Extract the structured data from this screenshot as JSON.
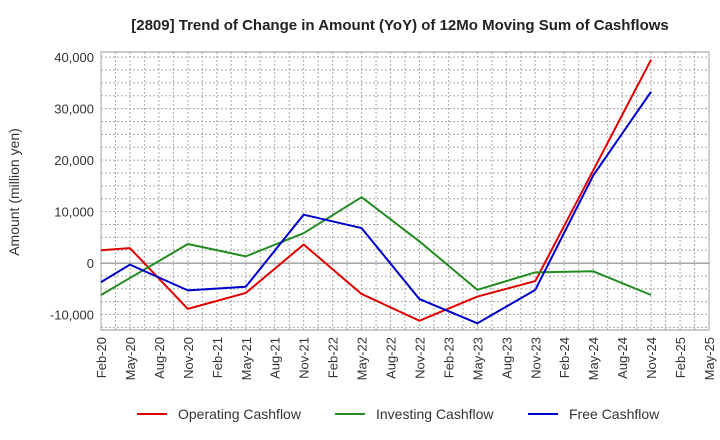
{
  "chart_data": {
    "type": "line",
    "title": "[2809]  Trend of Change in Amount (YoY) of 12Mo Moving Sum of Cashflows",
    "xlabel": "",
    "ylabel": "Amount (million yen)",
    "ylim": [
      -13000,
      41000
    ],
    "yticks": [
      -10000,
      0,
      10000,
      20000,
      30000,
      40000
    ],
    "ytick_labels": [
      "-10,000",
      "0",
      "10,000",
      "20,000",
      "30,000",
      "40,000"
    ],
    "categories": [
      "Feb-20",
      "May-20",
      "Aug-20",
      "Nov-20",
      "Feb-21",
      "May-21",
      "Aug-21",
      "Nov-21",
      "Feb-22",
      "May-22",
      "Aug-22",
      "Nov-22",
      "Feb-23",
      "May-23",
      "Aug-23",
      "Nov-23",
      "Feb-24",
      "May-24",
      "Aug-24",
      "Nov-24",
      "Feb-25",
      "May-25"
    ],
    "series": [
      {
        "name": "Operating Cashflow",
        "color": "#e00000",
        "x": [
          0,
          1,
          3,
          5,
          7,
          9,
          11,
          13,
          15,
          17,
          19
        ],
        "values": [
          2500,
          2900,
          -8900,
          -5800,
          3600,
          -6000,
          -11200,
          -6500,
          -3500,
          18000,
          39500
        ]
      },
      {
        "name": "Investing Cashflow",
        "color": "#228b22",
        "x": [
          0,
          3,
          5,
          7,
          9,
          11,
          13,
          15,
          17,
          19
        ],
        "values": [
          -6200,
          3700,
          1300,
          5800,
          12800,
          4200,
          -5200,
          -1800,
          -1600,
          -6200
        ]
      },
      {
        "name": "Free Cashflow",
        "color": "#0000cc",
        "x": [
          0,
          1,
          3,
          5,
          7,
          9,
          11,
          13,
          15,
          17,
          19
        ],
        "values": [
          -3700,
          -300,
          -5300,
          -4600,
          9400,
          6800,
          -7000,
          -11700,
          -5200,
          17000,
          33300
        ]
      }
    ],
    "grid": true,
    "legend_position": "bottom"
  }
}
